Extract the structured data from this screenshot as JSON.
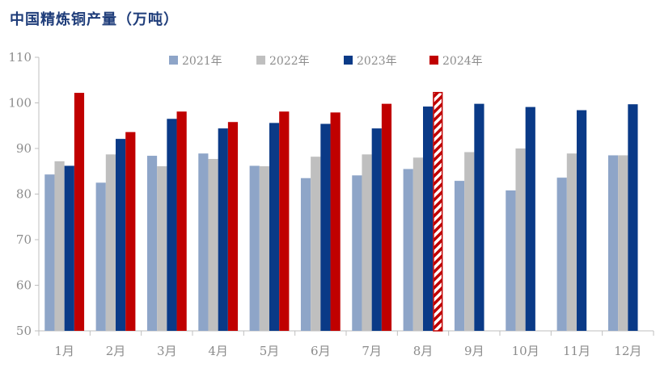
{
  "title": "中国精炼铜产量（万吨）",
  "chart_data": {
    "type": "bar",
    "categories": [
      "1月",
      "2月",
      "3月",
      "4月",
      "5月",
      "6月",
      "7月",
      "8月",
      "9月",
      "10月",
      "11月",
      "12月"
    ],
    "ylim": [
      50,
      110
    ],
    "yticks": [
      50,
      60,
      70,
      80,
      90,
      100,
      110
    ],
    "legend_position": "top",
    "series": [
      {
        "name": "2021年",
        "color": "#8ea5c8",
        "values": [
          84.3,
          82.5,
          88.4,
          88.9,
          86.2,
          83.5,
          84.1,
          85.5,
          82.9,
          80.8,
          83.6,
          88.5
        ]
      },
      {
        "name": "2022年",
        "color": "#bfbfbf",
        "values": [
          87.2,
          88.7,
          86.1,
          87.7,
          86.1,
          88.2,
          88.7,
          88.0,
          89.2,
          90.0,
          88.9,
          88.5
        ]
      },
      {
        "name": "2023年",
        "color": "#0a3a87",
        "values": [
          86.2,
          92.1,
          96.5,
          94.4,
          95.6,
          95.4,
          94.4,
          99.2,
          99.8,
          99.1,
          98.4,
          99.7
        ]
      },
      {
        "name": "2024年",
        "color": "#c00000",
        "values": [
          102.2,
          93.6,
          98.1,
          95.8,
          98.1,
          97.9,
          99.8,
          102.4,
          null,
          null,
          null,
          null
        ],
        "hatched_index": 7
      }
    ]
  }
}
